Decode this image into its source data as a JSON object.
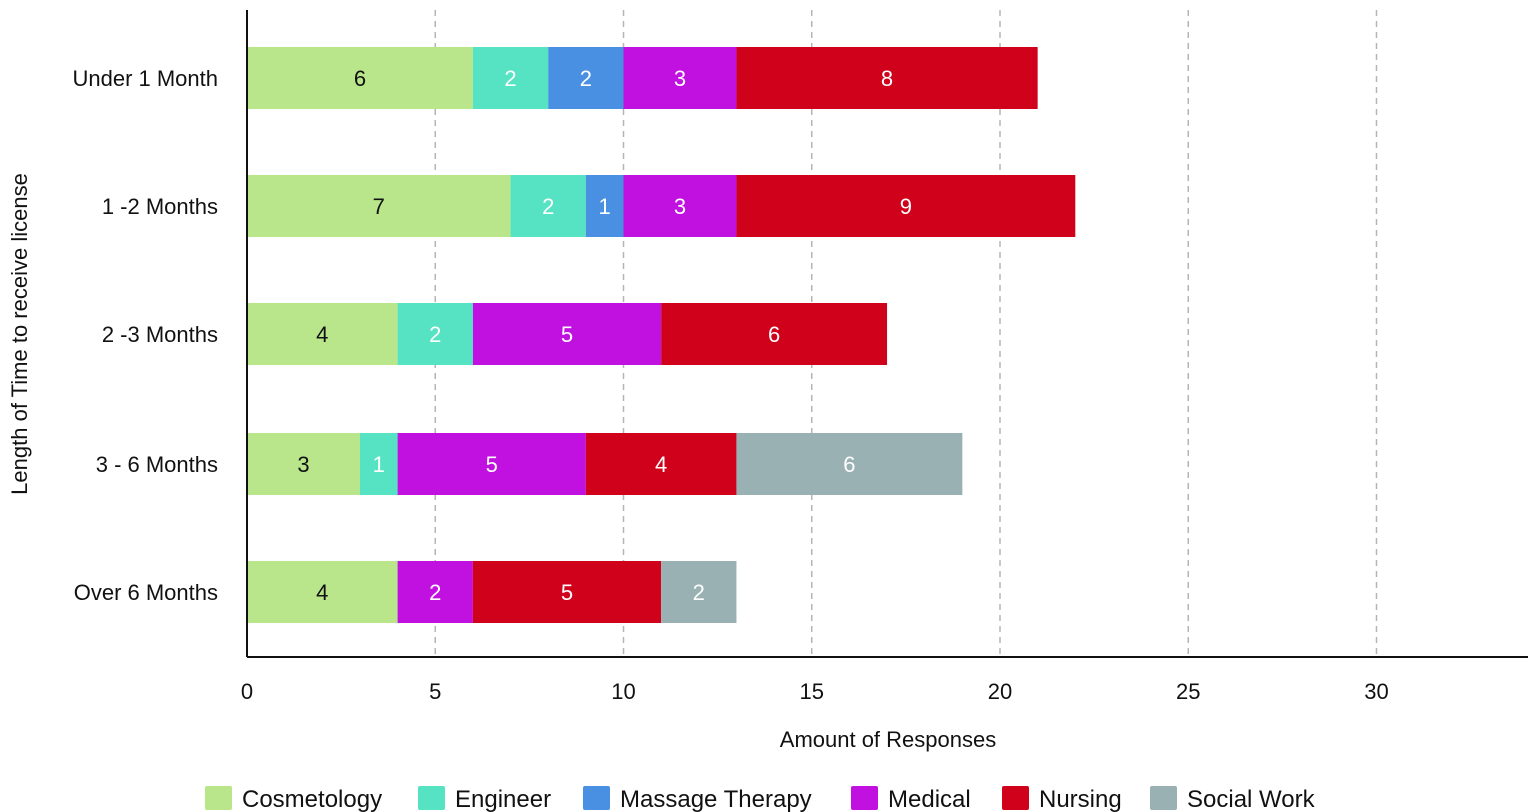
{
  "chart_data": {
    "type": "bar",
    "orientation": "horizontal",
    "stacked": true,
    "title": "",
    "xlabel": "Amount of Responses",
    "ylabel": "Length of Time to receive license",
    "xlim": [
      0,
      34
    ],
    "xticks": [
      0,
      5,
      10,
      15,
      20,
      25,
      30
    ],
    "grid": "vertical-dashed",
    "legend_position": "bottom",
    "categories": [
      "Under 1 Month",
      "1 -2 Months",
      "2 -3 Months",
      "3 - 6 Months",
      "Over 6 Months"
    ],
    "series": [
      {
        "name": "Cosmetology",
        "color": "#b9e68a",
        "label_color": "#111111",
        "values": [
          6,
          7,
          4,
          3,
          4
        ]
      },
      {
        "name": "Engineer",
        "color": "#55e3c4",
        "label_color": "#ffffff",
        "values": [
          2,
          2,
          2,
          1,
          0
        ]
      },
      {
        "name": "Massage Therapy",
        "color": "#4a90e2",
        "label_color": "#ffffff",
        "values": [
          2,
          1,
          0,
          0,
          0
        ]
      },
      {
        "name": "Medical",
        "color": "#c111e0",
        "label_color": "#ffffff",
        "values": [
          3,
          3,
          5,
          5,
          2
        ]
      },
      {
        "name": "Nursing",
        "color": "#d0021b",
        "label_color": "#ffffff",
        "values": [
          8,
          9,
          6,
          4,
          5
        ]
      },
      {
        "name": "Social Work",
        "color": "#9ab1b4",
        "label_color": "#ffffff",
        "values": [
          0,
          0,
          0,
          6,
          2
        ]
      }
    ]
  }
}
